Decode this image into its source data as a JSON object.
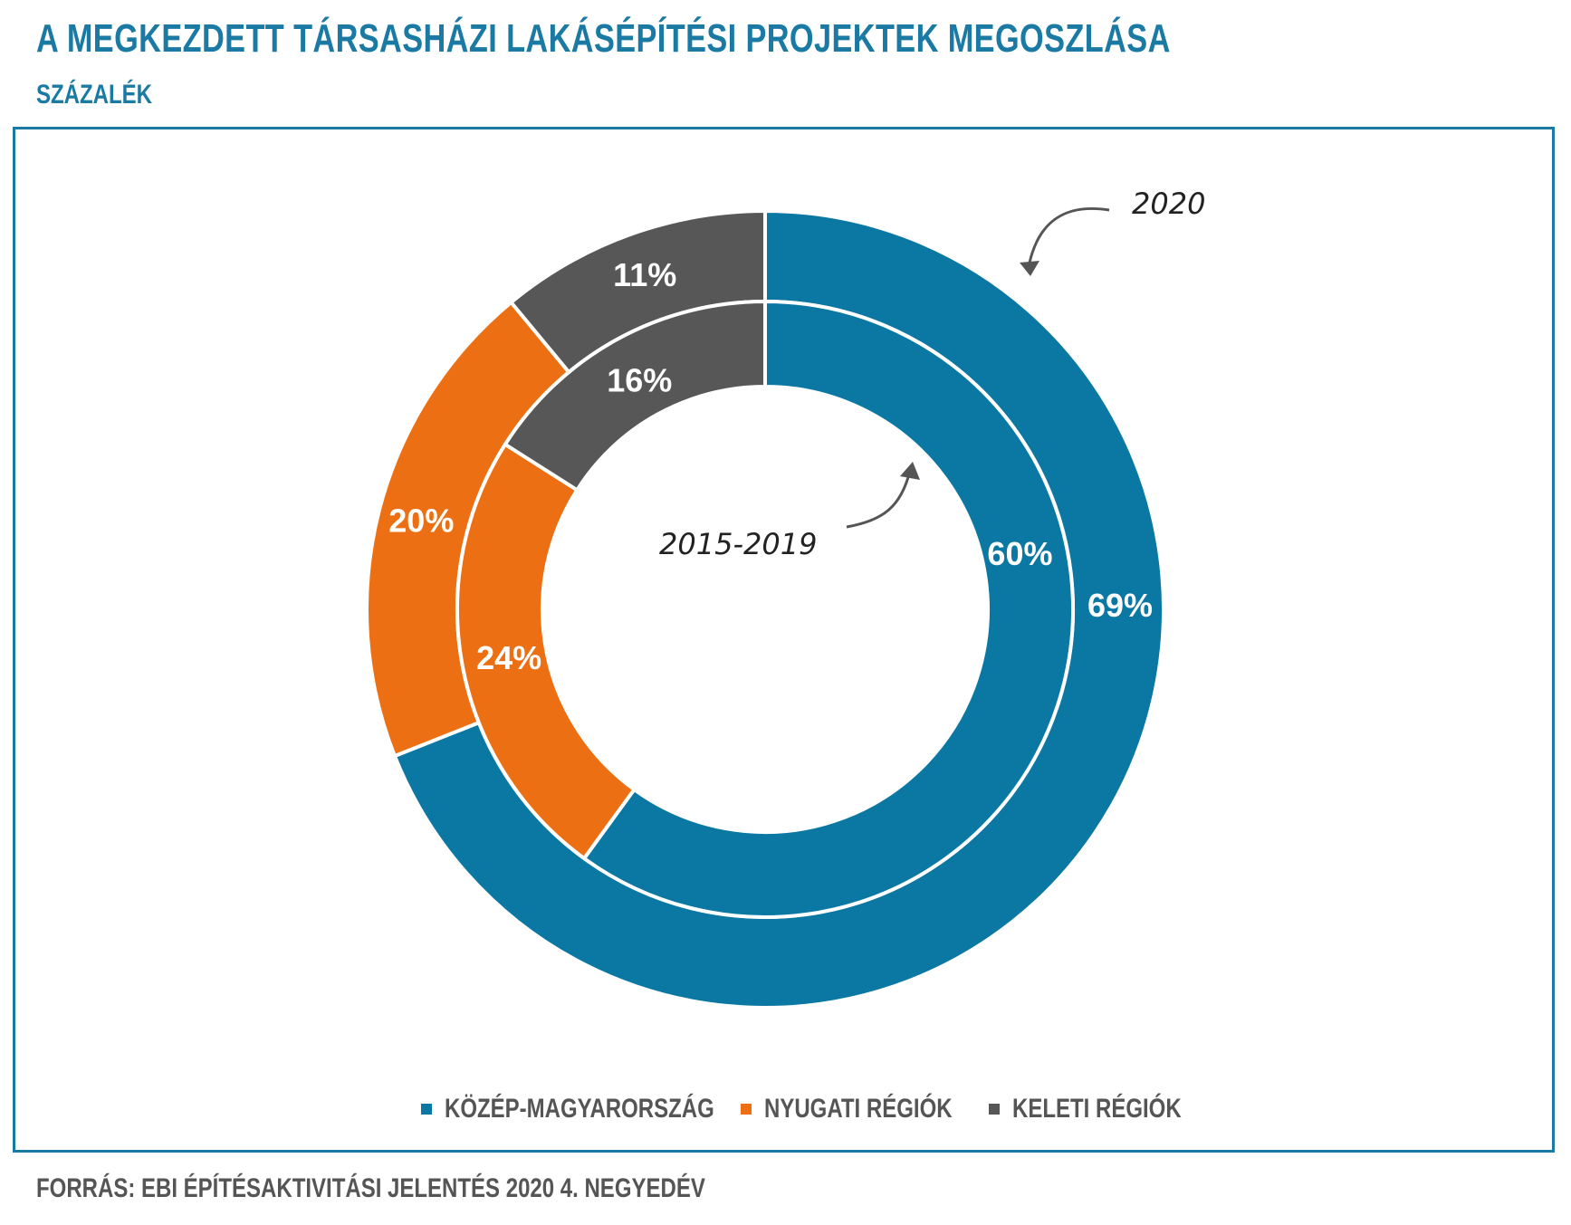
{
  "title": "A MEGKEZDETT TÁRSASHÁZI LAKÁSÉPÍTÉSI PROJEKTEK MEGOSZLÁSA",
  "subtitle": "SZÁZALÉK",
  "source": "FORRÁS: EBI ÉPÍTÉSAKTIVITÁSI JELENTÉS 2020 4. NEGYEDÉV",
  "colors": {
    "accent": "#1a7aa3",
    "kozep": "#0b78a4",
    "nyugati": "#ec7013",
    "keleti": "#575757"
  },
  "chart_data": {
    "type": "pie",
    "subtype": "double-donut",
    "categories": [
      "KÖZÉP-MAGYARORSZÁG",
      "NYUGATI RÉGIÓK",
      "KELETI RÉGIÓK"
    ],
    "series": [
      {
        "ring": "outer",
        "name": "2020",
        "values": [
          69,
          20,
          11
        ],
        "labels": [
          "69%",
          "20%",
          "11%"
        ]
      },
      {
        "ring": "inner",
        "name": "2015-2019",
        "values": [
          60,
          24,
          16
        ],
        "labels": [
          "60%",
          "24%",
          "16%"
        ]
      }
    ],
    "legend": {
      "placement": "bottom"
    },
    "annotations": [
      "2020",
      "2015-2019"
    ]
  }
}
